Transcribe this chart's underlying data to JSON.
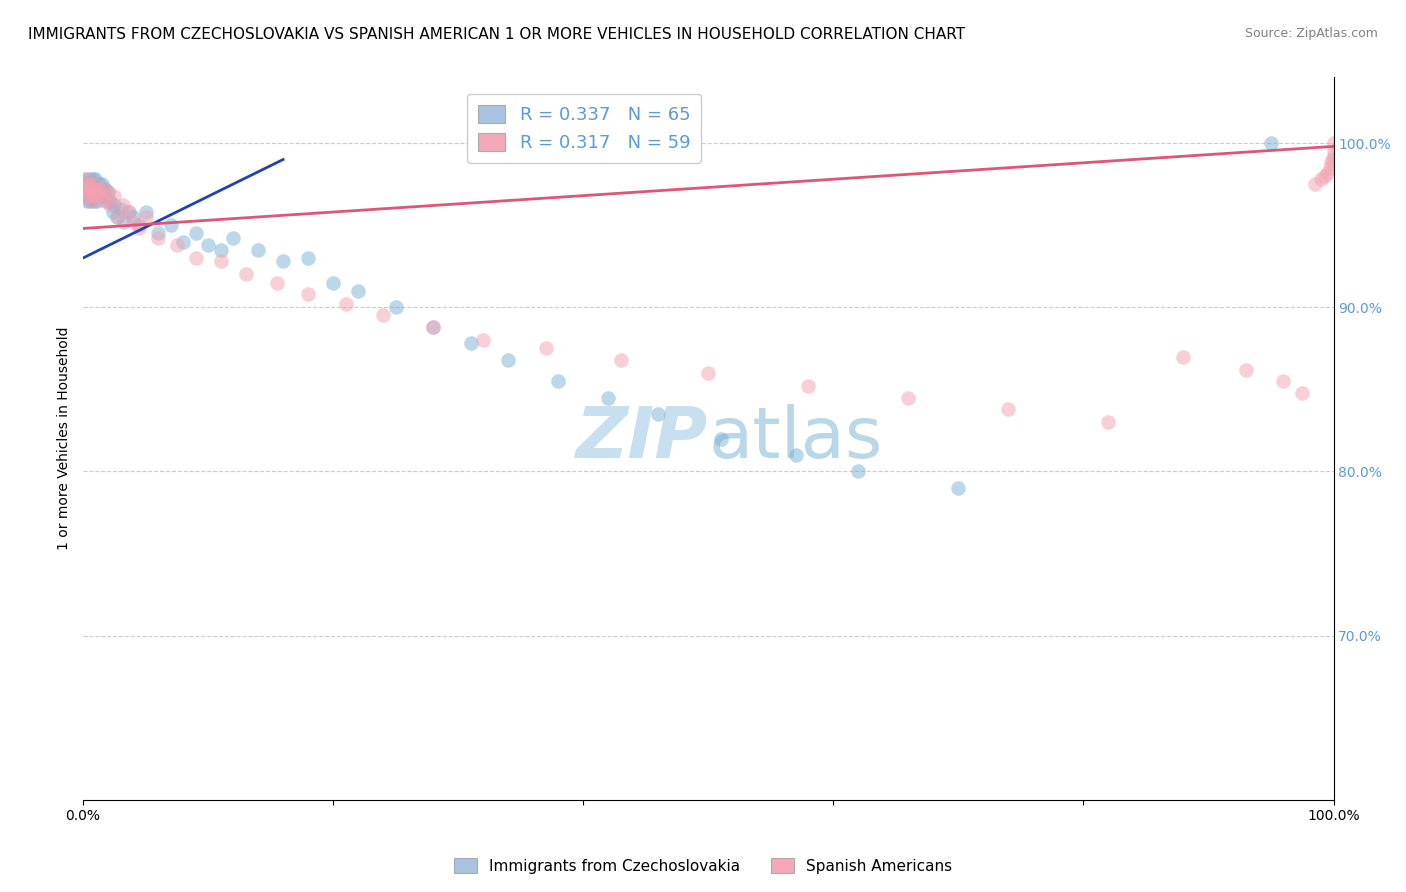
{
  "title": "IMMIGRANTS FROM CZECHOSLOVAKIA VS SPANISH AMERICAN 1 OR MORE VEHICLES IN HOUSEHOLD CORRELATION CHART",
  "source": "Source: ZipAtlas.com",
  "ylabel": "1 or more Vehicles in Household",
  "ytick_labels": [
    "100.0%",
    "90.0%",
    "80.0%",
    "70.0%"
  ],
  "ytick_values": [
    1.0,
    0.9,
    0.8,
    0.7
  ],
  "xlim": [
    0.0,
    1.0
  ],
  "ylim": [
    0.6,
    1.04
  ],
  "legend1_label": "R = 0.337   N = 65",
  "legend2_label": "R = 0.317   N = 59",
  "legend_series1_color": "#a8c4e0",
  "legend_series2_color": "#f4a8b8",
  "blue_color": "#7ab0d4",
  "pink_color": "#f4a0b0",
  "blue_line_color": "#2244aa",
  "pink_line_color": "#dd5577",
  "watermark_zip": "ZIP",
  "watermark_atlas": "atlas",
  "blue_scatter_x": [
    0.001,
    0.002,
    0.002,
    0.003,
    0.003,
    0.004,
    0.004,
    0.005,
    0.005,
    0.006,
    0.006,
    0.007,
    0.007,
    0.008,
    0.008,
    0.009,
    0.009,
    0.01,
    0.01,
    0.011,
    0.012,
    0.013,
    0.013,
    0.014,
    0.015,
    0.015,
    0.016,
    0.017,
    0.018,
    0.019,
    0.02,
    0.022,
    0.024,
    0.025,
    0.027,
    0.03,
    0.033,
    0.037,
    0.04,
    0.045,
    0.05,
    0.06,
    0.07,
    0.08,
    0.09,
    0.1,
    0.11,
    0.12,
    0.14,
    0.16,
    0.18,
    0.2,
    0.22,
    0.25,
    0.28,
    0.31,
    0.34,
    0.38,
    0.42,
    0.46,
    0.51,
    0.57,
    0.62,
    0.7,
    0.95
  ],
  "blue_scatter_y": [
    0.975,
    0.97,
    0.978,
    0.965,
    0.972,
    0.968,
    0.975,
    0.97,
    0.978,
    0.965,
    0.972,
    0.968,
    0.975,
    0.97,
    0.978,
    0.965,
    0.972,
    0.97,
    0.978,
    0.965,
    0.972,
    0.968,
    0.975,
    0.97,
    0.968,
    0.975,
    0.97,
    0.968,
    0.972,
    0.965,
    0.97,
    0.965,
    0.958,
    0.962,
    0.955,
    0.96,
    0.952,
    0.958,
    0.955,
    0.95,
    0.958,
    0.945,
    0.95,
    0.94,
    0.945,
    0.938,
    0.935,
    0.942,
    0.935,
    0.928,
    0.93,
    0.915,
    0.91,
    0.9,
    0.888,
    0.878,
    0.868,
    0.855,
    0.845,
    0.835,
    0.82,
    0.81,
    0.8,
    0.79,
    1.0
  ],
  "pink_scatter_x": [
    0.001,
    0.002,
    0.003,
    0.003,
    0.004,
    0.005,
    0.005,
    0.006,
    0.007,
    0.008,
    0.009,
    0.01,
    0.011,
    0.012,
    0.013,
    0.015,
    0.016,
    0.018,
    0.02,
    0.022,
    0.025,
    0.028,
    0.032,
    0.036,
    0.04,
    0.045,
    0.05,
    0.06,
    0.075,
    0.09,
    0.11,
    0.13,
    0.155,
    0.18,
    0.21,
    0.24,
    0.28,
    0.32,
    0.37,
    0.43,
    0.5,
    0.58,
    0.66,
    0.74,
    0.82,
    0.88,
    0.93,
    0.96,
    0.975,
    0.985,
    0.99,
    0.993,
    0.995,
    0.997,
    0.998,
    0.999,
    1.0,
    1.0,
    1.0
  ],
  "pink_scatter_y": [
    0.972,
    0.975,
    0.968,
    0.978,
    0.972,
    0.968,
    0.975,
    0.97,
    0.965,
    0.972,
    0.968,
    0.975,
    0.97,
    0.968,
    0.972,
    0.968,
    0.972,
    0.965,
    0.97,
    0.962,
    0.968,
    0.955,
    0.962,
    0.958,
    0.952,
    0.948,
    0.955,
    0.942,
    0.938,
    0.93,
    0.928,
    0.92,
    0.915,
    0.908,
    0.902,
    0.895,
    0.888,
    0.88,
    0.875,
    0.868,
    0.86,
    0.852,
    0.845,
    0.838,
    0.83,
    0.87,
    0.862,
    0.855,
    0.848,
    0.975,
    0.978,
    0.98,
    0.982,
    0.985,
    0.988,
    0.99,
    0.992,
    0.995,
    1.0
  ],
  "blue_line_x0": 0.0,
  "blue_line_x1": 0.16,
  "blue_line_y0": 0.93,
  "blue_line_y1": 0.99,
  "pink_line_x0": 0.0,
  "pink_line_x1": 1.0,
  "pink_line_y0": 0.948,
  "pink_line_y1": 0.998,
  "marker_size": 110,
  "alpha": 0.5,
  "background_color": "#ffffff",
  "grid_color": "#cccccc",
  "title_fontsize": 11,
  "axis_label_fontsize": 10,
  "tick_fontsize": 10,
  "source_fontsize": 9,
  "watermark_color_zip": "#c8dff0",
  "watermark_color_atlas": "#b8d8e8",
  "watermark_fontsize": 52,
  "right_tick_color": "#5b9bd5",
  "bottom_tick_positions": [
    0.0,
    0.2,
    0.4,
    0.6,
    0.8,
    1.0
  ]
}
